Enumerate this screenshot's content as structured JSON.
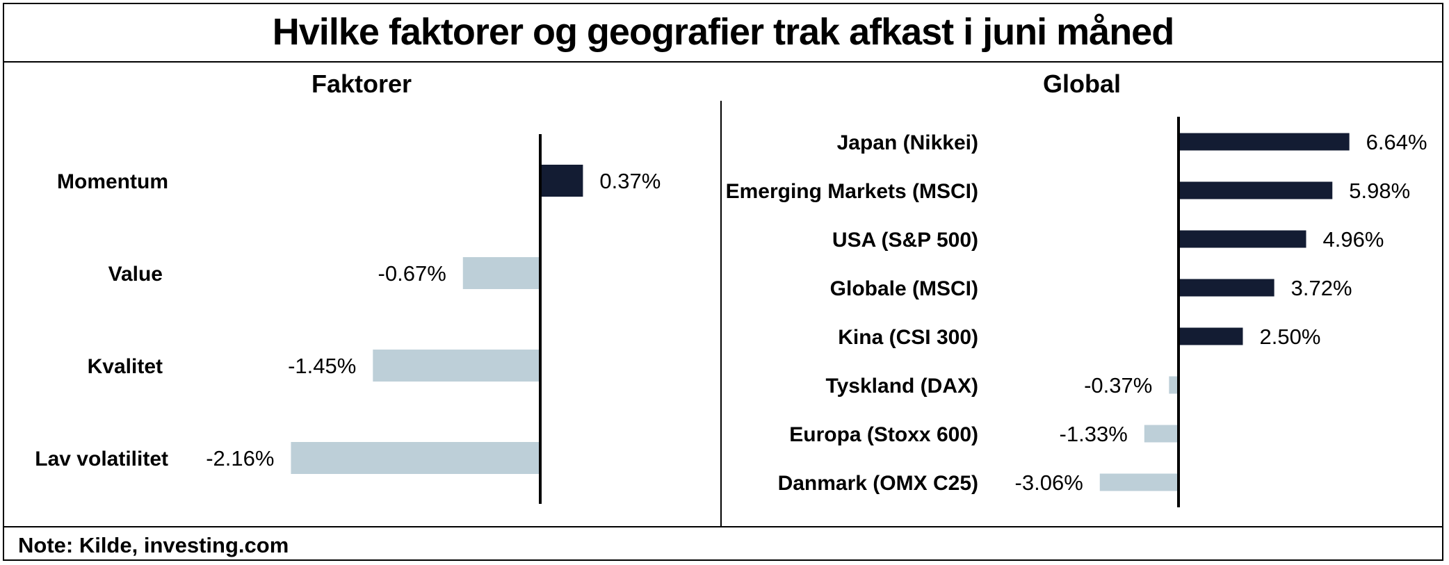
{
  "title": "Hvilke faktorer og geografier trak afkast i juni måned",
  "note": "Note: Kilde, investing.com",
  "colors": {
    "positive": "#131c33",
    "negative": "#bdcfd8",
    "axis": "#000000"
  },
  "chart_data": [
    {
      "type": "bar",
      "orientation": "horizontal",
      "title": "Faktorer",
      "categories": [
        "Momentum",
        "Value",
        "Kvalitet",
        "Lav volatilitet"
      ],
      "values": [
        0.37,
        -0.67,
        -1.45,
        -2.16
      ],
      "labels": [
        "0.37%",
        "-0.67%",
        "-1.45%",
        "-2.16%"
      ],
      "unit": "%"
    },
    {
      "type": "bar",
      "orientation": "horizontal",
      "title": "Global",
      "categories": [
        "Japan (Nikkei)",
        "Emerging Markets (MSCI)",
        "USA (S&P 500)",
        "Globale (MSCI)",
        "Kina (CSI 300)",
        "Tyskland (DAX)",
        "Europa (Stoxx 600)",
        "Danmark (OMX C25)"
      ],
      "values": [
        6.64,
        5.98,
        4.96,
        3.72,
        2.5,
        -0.37,
        -1.33,
        -3.06
      ],
      "labels": [
        "6.64%",
        "5.98%",
        "4.96%",
        "3.72%",
        "2.50%",
        "-0.37%",
        "-1.33%",
        "-3.06%"
      ],
      "unit": "%"
    }
  ]
}
